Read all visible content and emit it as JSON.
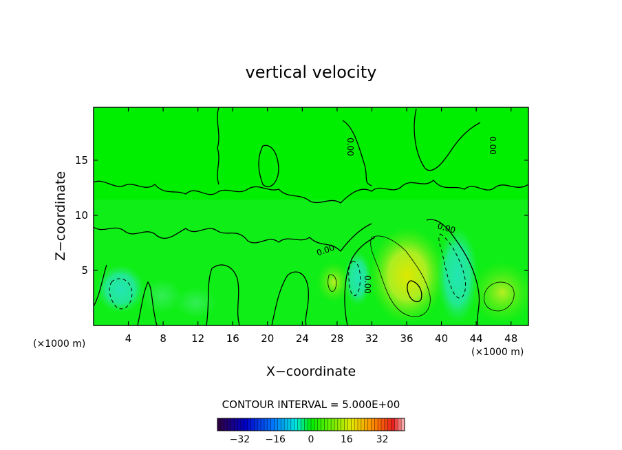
{
  "chart_data": {
    "type": "heatmap",
    "title": "vertical velocity",
    "xlabel": "X−coordinate",
    "ylabel": "Z−coordinate",
    "x_unit_left": "(×1000 m)",
    "x_unit_right": "(×1000 m)",
    "xlim": [
      0,
      50
    ],
    "ylim": [
      0,
      19.8
    ],
    "x_ticks": [
      "4",
      "8",
      "12",
      "16",
      "20",
      "24",
      "28",
      "32",
      "36",
      "40",
      "44",
      "48"
    ],
    "x_tick_values": [
      4,
      8,
      12,
      16,
      20,
      24,
      28,
      32,
      36,
      40,
      44,
      48
    ],
    "y_ticks": [
      "5",
      "10",
      "15"
    ],
    "y_tick_values": [
      5,
      10,
      15
    ],
    "contour_interval_label": "CONTOUR INTERVAL = 5.000E+00",
    "contour_labels": [
      "0.00",
      "0.00",
      "0.00",
      "0.00",
      "0.00"
    ],
    "colorbar": {
      "range": [
        -42,
        42
      ],
      "tick_labels": [
        "−32",
        "−16",
        "0",
        "16",
        "32"
      ],
      "tick_values": [
        -32,
        -16,
        0,
        16,
        32
      ]
    },
    "colors": {
      "field_neutral": "#00ee00",
      "field_positive": "#aaee22",
      "field_negative": "#00e8a0"
    }
  }
}
